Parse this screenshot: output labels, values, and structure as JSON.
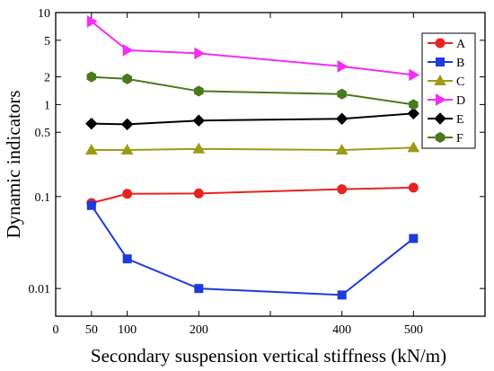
{
  "chart_data": {
    "type": "line",
    "xlabel": "Secondary suspension vertical stiffness (kN/m)",
    "ylabel": "Dynamic indicators",
    "x_scale": "linear",
    "y_scale": "log",
    "xlim": [
      0,
      600
    ],
    "ylim": [
      0.005,
      10
    ],
    "x_ticks": [
      0,
      50,
      100,
      200,
      300,
      400,
      500,
      600
    ],
    "x_tick_labels": [
      "0",
      "50",
      "100",
      "200",
      "",
      "400",
      "500",
      ""
    ],
    "y_ticks": [
      0.01,
      0.1,
      0.5,
      1,
      2,
      5,
      10
    ],
    "y_tick_labels": [
      "0.01",
      "0.1",
      "0.5",
      "1",
      "2",
      "5",
      "10"
    ],
    "x": [
      50,
      100,
      200,
      400,
      500
    ],
    "legend_position": "top-right",
    "grid": false,
    "series": [
      {
        "name": "A",
        "values": [
          0.085,
          0.107,
          0.108,
          0.12,
          0.125
        ],
        "color": "#e8231f",
        "marker": "circle"
      },
      {
        "name": "B",
        "values": [
          0.08,
          0.021,
          0.01,
          0.0085,
          0.035
        ],
        "color": "#1f3bdc",
        "marker": "square"
      },
      {
        "name": "C",
        "values": [
          0.32,
          0.32,
          0.33,
          0.32,
          0.34
        ],
        "color": "#9c9a17",
        "marker": "triangle-up"
      },
      {
        "name": "D",
        "values": [
          8.0,
          3.9,
          3.6,
          2.6,
          2.1
        ],
        "color": "#f22ff2",
        "marker": "triangle-right"
      },
      {
        "name": "E",
        "values": [
          0.62,
          0.61,
          0.67,
          0.7,
          0.8
        ],
        "color": "#000000",
        "marker": "diamond"
      },
      {
        "name": "F",
        "values": [
          2.0,
          1.9,
          1.4,
          1.3,
          1.0
        ],
        "color": "#4a7a1c",
        "marker": "hexagon"
      }
    ]
  }
}
